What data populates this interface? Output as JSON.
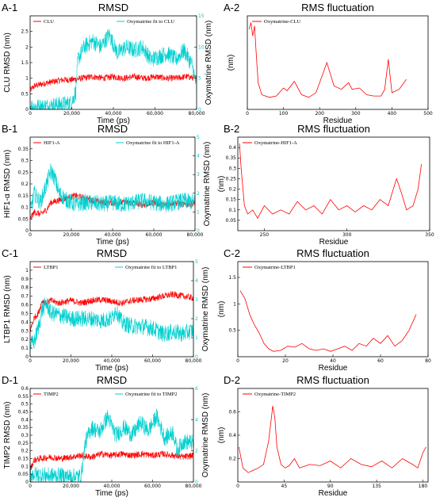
{
  "colors": {
    "protein": "#ff0000",
    "ligand": "#00d0d0",
    "axis": "#000000"
  },
  "chart_data": [
    {
      "panel": "A-1",
      "type": "line",
      "title": "RMSD",
      "xlabel": "Time (ps)",
      "ylabel": "CLU RMSD (nm)",
      "ylabel_right": "Oxymatrine RMSD (nm)",
      "xlim": [
        0,
        80000
      ],
      "ylim": [
        0,
        3
      ],
      "ylim_right": [
        0,
        15
      ],
      "xticks": [
        "0",
        "20,000",
        "40,000",
        "60,000",
        "80,000"
      ],
      "yticks": [
        "0",
        "0.5",
        "1",
        "1.5",
        "2",
        "2.5"
      ],
      "yticks_right": [
        "0",
        "5",
        "10",
        "15"
      ],
      "legend": "top",
      "series": [
        {
          "name": "CLU",
          "axis": "left",
          "color": "#ff0000",
          "x": [
            0,
            2000,
            5000,
            8000,
            12000,
            16000,
            20000,
            25000,
            30000,
            35000,
            40000,
            45000,
            50000,
            55000,
            60000,
            65000,
            70000,
            75000,
            80000
          ],
          "values": [
            0.6,
            0.75,
            0.8,
            0.85,
            0.9,
            0.95,
            0.95,
            1.0,
            1.05,
            1.0,
            1.05,
            1.0,
            1.05,
            1.0,
            1.05,
            1.0,
            1.0,
            1.05,
            1.0
          ]
        },
        {
          "name": "Oxymatrine fit to CLU",
          "axis": "right",
          "color": "#00d0d0",
          "x": [
            0,
            5000,
            10000,
            15000,
            20000,
            22000,
            23000,
            26000,
            30000,
            34000,
            38000,
            42000,
            46000,
            50000,
            54000,
            58000,
            62000,
            66000,
            70000,
            74000,
            78000,
            80000
          ],
          "values": [
            0.5,
            0.4,
            0.6,
            0.8,
            1.0,
            3.0,
            8.0,
            10.0,
            11.0,
            10.0,
            12.0,
            9.0,
            10.0,
            9.5,
            10.0,
            8.0,
            8.5,
            9.0,
            8.0,
            9.5,
            7.0,
            3.5
          ]
        }
      ]
    },
    {
      "panel": "A-2",
      "type": "line",
      "title": "RMS fluctuation",
      "xlabel": "Residue",
      "ylabel": "(nm)",
      "xlim": [
        0,
        500
      ],
      "ylim": [
        0,
        1.4
      ],
      "xticks": [
        "0",
        "100",
        "200",
        "300",
        "400",
        "500"
      ],
      "yticks": [],
      "legend": "top-left",
      "series": [
        {
          "name": "Oxymatrine-CLU",
          "color": "#ff0000",
          "x": [
            5,
            10,
            15,
            20,
            25,
            30,
            40,
            60,
            80,
            100,
            110,
            130,
            150,
            170,
            190,
            210,
            220,
            240,
            260,
            280,
            290,
            310,
            330,
            350,
            370,
            380,
            390,
            400,
            420,
            440
          ],
          "values": [
            1.2,
            1.3,
            1.1,
            1.25,
            0.8,
            0.4,
            0.22,
            0.18,
            0.2,
            0.32,
            0.28,
            0.42,
            0.22,
            0.18,
            0.25,
            0.55,
            0.7,
            0.35,
            0.3,
            0.4,
            0.3,
            0.32,
            0.22,
            0.2,
            0.2,
            0.3,
            0.75,
            0.25,
            0.3,
            0.45
          ]
        }
      ]
    },
    {
      "panel": "B-1",
      "type": "line",
      "title": "RMSD",
      "xlabel": "Time (ps)",
      "ylabel": "HIF1-α RMSD (nm)",
      "ylabel_right": "Oxymatrine RMSD (nm)",
      "xlim": [
        0,
        80000
      ],
      "ylim": [
        0,
        0.4
      ],
      "ylim_right": [
        0,
        5
      ],
      "xticks": [
        "0",
        "20,000",
        "40,000",
        "60,000",
        "80,000"
      ],
      "yticks": [
        "0",
        "0.05",
        "0.1",
        "0.15",
        "0.2",
        "0.25",
        "0.3",
        "0.35"
      ],
      "yticks_right": [
        "0",
        "1",
        "2",
        "3",
        "4",
        "5"
      ],
      "legend": "top",
      "series": [
        {
          "name": "HIF1-A",
          "axis": "left",
          "color": "#ff0000",
          "x": [
            0,
            2000,
            5000,
            8000,
            10000,
            14000,
            18000,
            22000,
            26000,
            30000,
            35000,
            40000,
            45000,
            50000,
            55000,
            60000,
            65000,
            70000,
            75000,
            80000
          ],
          "values": [
            0.05,
            0.08,
            0.07,
            0.09,
            0.12,
            0.13,
            0.14,
            0.15,
            0.14,
            0.13,
            0.12,
            0.12,
            0.12,
            0.12,
            0.11,
            0.12,
            0.11,
            0.12,
            0.11,
            0.12
          ]
        },
        {
          "name": "Oxymatrine fit to HIF1-A",
          "axis": "right",
          "color": "#00d0d0",
          "x": [
            0,
            2000,
            5000,
            8000,
            10000,
            12000,
            14000,
            18000,
            22000,
            26000,
            30000,
            35000,
            40000,
            45000,
            50000,
            55000,
            60000,
            65000,
            70000,
            75000,
            80000
          ],
          "values": [
            1.0,
            2.0,
            1.5,
            2.5,
            3.2,
            2.8,
            2.0,
            1.6,
            1.4,
            1.5,
            1.5,
            1.4,
            1.5,
            1.4,
            1.5,
            1.6,
            1.5,
            1.4,
            1.5,
            1.6,
            1.5
          ]
        }
      ]
    },
    {
      "panel": "B-2",
      "type": "line",
      "title": "RMS fluctuation",
      "xlabel": "Residue",
      "ylabel": "(nm)",
      "xlim": [
        234,
        350
      ],
      "ylim": [
        0,
        0.45
      ],
      "xticks": [
        "250",
        "300",
        "350"
      ],
      "yticks": [
        "0.05",
        "0.1",
        "0.15",
        "0.2",
        "0.25",
        "0.3",
        "0.35",
        "0.4"
      ],
      "legend": "top-left",
      "series": [
        {
          "name": "Oxymatrine-HIF1-A",
          "color": "#ff0000",
          "x": [
            235,
            236,
            238,
            240,
            243,
            246,
            250,
            255,
            260,
            265,
            270,
            275,
            280,
            285,
            290,
            295,
            300,
            305,
            310,
            315,
            320,
            325,
            328,
            330,
            333,
            336,
            340,
            343,
            345
          ],
          "values": [
            0.42,
            0.3,
            0.12,
            0.08,
            0.1,
            0.06,
            0.12,
            0.08,
            0.1,
            0.08,
            0.14,
            0.1,
            0.12,
            0.08,
            0.15,
            0.1,
            0.12,
            0.09,
            0.12,
            0.1,
            0.15,
            0.12,
            0.2,
            0.25,
            0.18,
            0.1,
            0.12,
            0.2,
            0.32
          ]
        }
      ]
    },
    {
      "panel": "C-1",
      "type": "line",
      "title": "RMSD",
      "xlabel": "Time (ps)",
      "ylabel": "LTBP1 RMSD (nm)",
      "ylabel_right": "Oxymatrine RMSD (nm)",
      "xlim": [
        0,
        80000
      ],
      "ylim": [
        0,
        1.1
      ],
      "ylim_right": [
        0,
        5
      ],
      "xticks": [
        "0",
        "20,000",
        "40,000",
        "60,000",
        "80,000"
      ],
      "yticks": [
        "0",
        "0.1",
        "0.2",
        "0.3",
        "0.4",
        "0.5",
        "0.6",
        "0.7",
        "0.8",
        "0.9",
        "1"
      ],
      "yticks_right": [
        "0",
        "1",
        "2",
        "3",
        "4",
        "5"
      ],
      "legend": "top",
      "series": [
        {
          "name": "LTBP1",
          "axis": "left",
          "color": "#ff0000",
          "x": [
            0,
            2000,
            4000,
            6000,
            8000,
            10000,
            14000,
            20000,
            25000,
            30000,
            35000,
            40000,
            45000,
            50000,
            55000,
            60000,
            65000,
            70000,
            75000,
            80000
          ],
          "values": [
            0.3,
            0.45,
            0.5,
            0.65,
            0.62,
            0.65,
            0.62,
            0.65,
            0.62,
            0.65,
            0.66,
            0.64,
            0.62,
            0.65,
            0.66,
            0.67,
            0.7,
            0.72,
            0.7,
            0.68
          ]
        },
        {
          "name": "Oxymatrine fit to LTBP1",
          "axis": "right",
          "color": "#00d0d0",
          "x": [
            0,
            2000,
            4000,
            6000,
            8000,
            10000,
            14000,
            20000,
            25000,
            30000,
            35000,
            40000,
            42000,
            45000,
            50000,
            55000,
            60000,
            65000,
            70000,
            75000,
            80000
          ],
          "values": [
            0.6,
            0.8,
            1.5,
            2.5,
            2.8,
            2.3,
            2.2,
            2.0,
            2.0,
            2.0,
            1.9,
            2.0,
            2.5,
            1.8,
            1.6,
            1.6,
            1.5,
            1.2,
            1.3,
            1.2,
            1.4
          ]
        }
      ]
    },
    {
      "panel": "C-2",
      "type": "line",
      "title": "RMS fluctuation",
      "xlabel": "Residue",
      "ylabel": "(nm)",
      "xlim": [
        0,
        80
      ],
      "ylim": [
        0,
        1.8
      ],
      "xticks": [
        "0",
        "20",
        "40",
        "60",
        "80"
      ],
      "yticks": [
        "0.5",
        "1",
        "1.5"
      ],
      "legend": "top-left",
      "series": [
        {
          "name": "Oxymatrine-LTBP1",
          "color": "#ff0000",
          "x": [
            1,
            3,
            5,
            7,
            9,
            11,
            13,
            15,
            18,
            21,
            24,
            27,
            30,
            33,
            36,
            39,
            42,
            45,
            48,
            51,
            54,
            57,
            60,
            63,
            66,
            69,
            72,
            75
          ],
          "values": [
            1.25,
            1.1,
            0.8,
            0.6,
            0.45,
            0.25,
            0.15,
            0.1,
            0.12,
            0.2,
            0.18,
            0.25,
            0.15,
            0.12,
            0.15,
            0.1,
            0.15,
            0.2,
            0.12,
            0.25,
            0.2,
            0.35,
            0.25,
            0.4,
            0.2,
            0.3,
            0.5,
            0.8
          ]
        }
      ]
    },
    {
      "panel": "D-1",
      "type": "line",
      "title": "RMSD",
      "xlabel": "Time (ps)",
      "ylabel": "TIMP2 RMSD (nm)",
      "ylabel_right": "Oxymatrine RMSD (nm)",
      "xlim": [
        0,
        80000
      ],
      "ylim": [
        0,
        0.6
      ],
      "ylim_right": [
        0,
        6
      ],
      "xticks": [
        "0",
        "20,000",
        "40,000",
        "60,000",
        "80,000"
      ],
      "yticks": [
        "0",
        "0.05",
        "0.1",
        "0.15",
        "0.2",
        "0.25",
        "0.3",
        "0.35",
        "0.4",
        "0.45",
        "0.5",
        "0.55",
        "0.6"
      ],
      "yticks_right": [
        "0",
        "2",
        "4",
        "6"
      ],
      "legend": "top",
      "series": [
        {
          "name": "TIMP2",
          "axis": "left",
          "color": "#ff0000",
          "x": [
            0,
            2000,
            5000,
            10000,
            15000,
            20000,
            25000,
            30000,
            35000,
            40000,
            45000,
            50000,
            55000,
            60000,
            65000,
            70000,
            75000,
            80000
          ],
          "values": [
            0.08,
            0.14,
            0.15,
            0.16,
            0.15,
            0.16,
            0.17,
            0.16,
            0.18,
            0.17,
            0.18,
            0.17,
            0.18,
            0.17,
            0.18,
            0.17,
            0.16,
            0.17
          ]
        },
        {
          "name": "Oxymatrine fit to TIMP2",
          "axis": "right",
          "color": "#00d0d0",
          "x": [
            0,
            5000,
            10000,
            15000,
            20000,
            25000,
            27000,
            30000,
            34000,
            38000,
            42000,
            46000,
            50000,
            54000,
            58000,
            62000,
            66000,
            70000,
            72000,
            75000,
            80000
          ],
          "values": [
            0.5,
            0.45,
            0.4,
            0.4,
            0.35,
            0.35,
            2.5,
            3.5,
            3.2,
            4.2,
            3.0,
            3.5,
            3.0,
            3.8,
            3.3,
            4.2,
            2.8,
            3.2,
            2.0,
            2.6,
            2.5
          ]
        }
      ]
    },
    {
      "panel": "D-2",
      "type": "line",
      "title": "RMS fluctuation",
      "xlabel": "Residue",
      "ylabel": "(nm)",
      "xlim": [
        0,
        185
      ],
      "ylim": [
        0,
        0.8
      ],
      "xticks": [
        "0",
        "45",
        "90",
        "135",
        "180"
      ],
      "yticks": [
        "0.2",
        "0.4",
        "0.6"
      ],
      "legend": "top-left",
      "series": [
        {
          "name": "Oxymatrine-TIMP2",
          "color": "#ff0000",
          "x": [
            1,
            5,
            10,
            15,
            20,
            25,
            30,
            34,
            36,
            38,
            42,
            46,
            50,
            55,
            60,
            70,
            80,
            90,
            100,
            110,
            120,
            130,
            140,
            150,
            160,
            170,
            175,
            180,
            183
          ],
          "values": [
            0.3,
            0.12,
            0.08,
            0.1,
            0.12,
            0.15,
            0.35,
            0.65,
            0.55,
            0.3,
            0.15,
            0.12,
            0.14,
            0.2,
            0.12,
            0.15,
            0.14,
            0.18,
            0.12,
            0.2,
            0.15,
            0.13,
            0.18,
            0.12,
            0.2,
            0.15,
            0.12,
            0.25,
            0.3
          ]
        }
      ]
    }
  ]
}
